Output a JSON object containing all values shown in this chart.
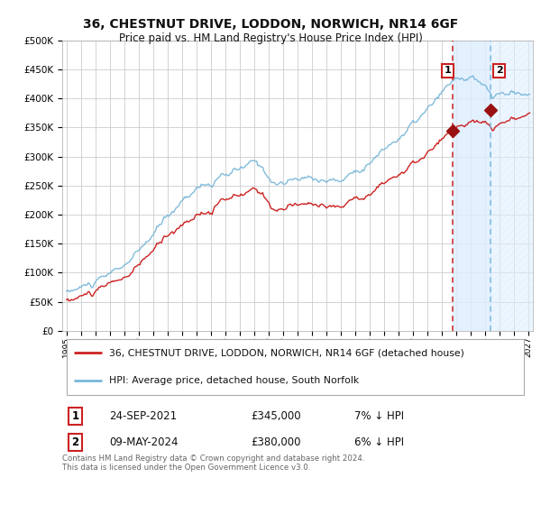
{
  "title": "36, CHESTNUT DRIVE, LODDON, NORWICH, NR14 6GF",
  "subtitle": "Price paid vs. HM Land Registry's House Price Index (HPI)",
  "legend_line1": "36, CHESTNUT DRIVE, LODDON, NORWICH, NR14 6GF (detached house)",
  "legend_line2": "HPI: Average price, detached house, South Norfolk",
  "annotation1_date": "24-SEP-2021",
  "annotation1_price": "£345,000",
  "annotation1_hpi": "7% ↓ HPI",
  "annotation2_date": "09-MAY-2024",
  "annotation2_price": "£380,000",
  "annotation2_hpi": "6% ↓ HPI",
  "footer": "Contains HM Land Registry data © Crown copyright and database right 2024.\nThis data is licensed under the Open Government Licence v3.0.",
  "hpi_color": "#7ab8d9",
  "price_color": "#cc2222",
  "marker_color": "#991111",
  "vline1_color": "#cc2222",
  "vline2_color": "#7ab8d9",
  "shade_color": "#ddeeff",
  "annotation_box_color": "#cc2222",
  "background_color": "#ffffff",
  "grid_color": "#cccccc",
  "ylim": [
    0,
    500000
  ],
  "yticks": [
    0,
    50000,
    100000,
    150000,
    200000,
    250000,
    300000,
    350000,
    400000,
    450000,
    500000
  ],
  "sale1_year": 2021.73,
  "sale1_price": 345000,
  "sale2_year": 2024.36,
  "sale2_price": 380000,
  "year_start": 1995,
  "year_end": 2027
}
